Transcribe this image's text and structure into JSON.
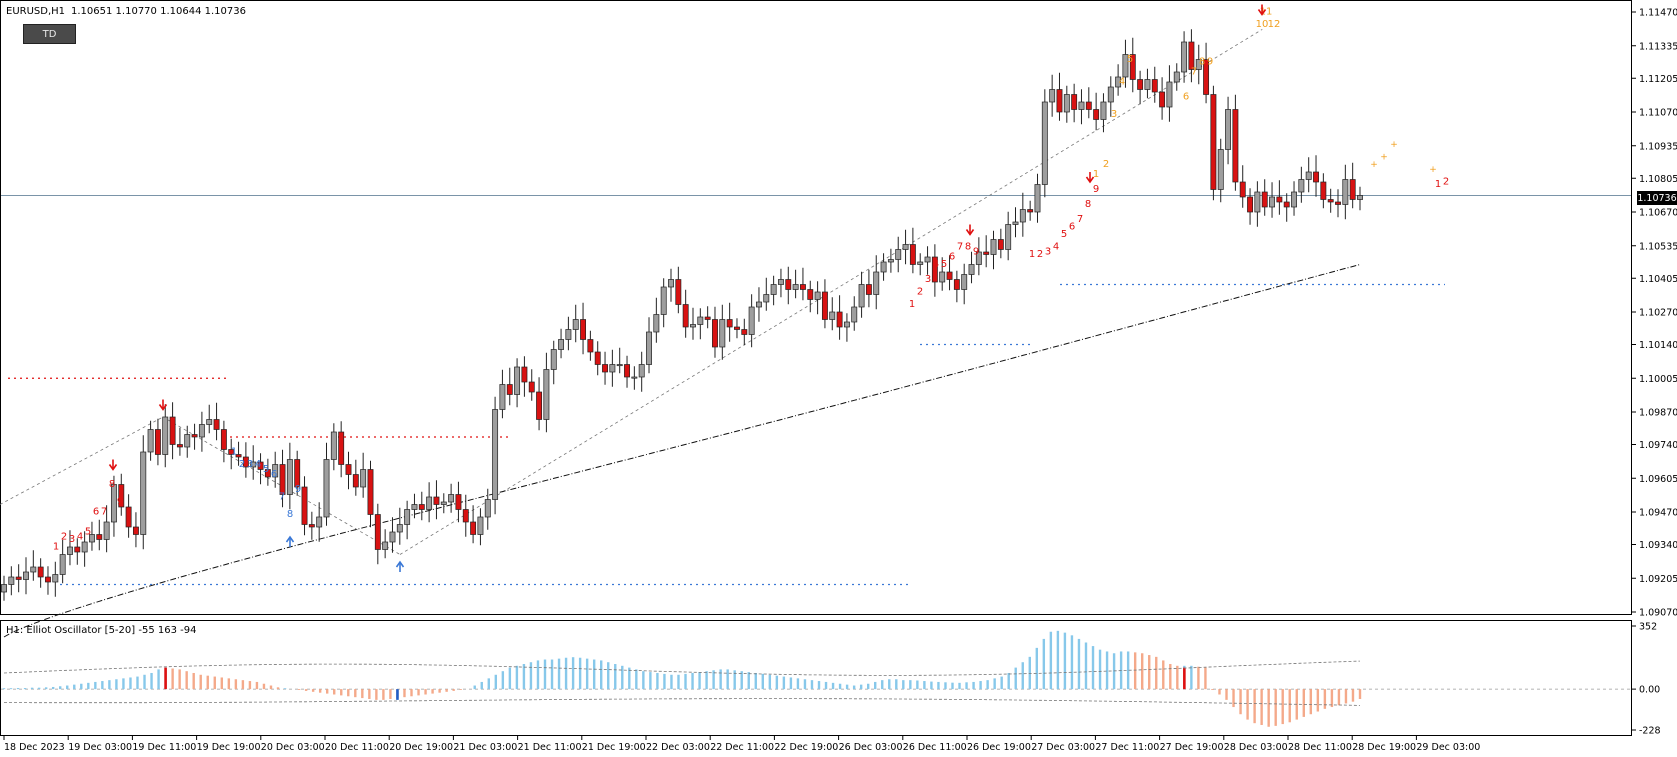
{
  "header": {
    "symbol": "EURUSD,H1",
    "ohlc": "1.10651 1.10770 1.10644 1.10736",
    "button_label": "TD"
  },
  "osc_header": {
    "text": "H1: Elliot Oscillator [5-20]  -55 163 -94"
  },
  "current_price": "1.10736",
  "colors": {
    "bull": "#9e9e9e",
    "bear": "#d81212",
    "osc_pos": "#87c8ea",
    "osc_neg": "#f4a98a",
    "td_red": "#e01010",
    "td_blue": "#3a78d6",
    "td_orange": "#f0a020"
  },
  "chart_data": [
    {
      "type": "candlestick",
      "title": "EURUSD,H1",
      "ylim": [
        1.0907,
        1.1147
      ],
      "y_ticks": [
        "1.11470",
        "1.11335",
        "1.11205",
        "1.11070",
        "1.10935",
        "1.10805",
        "1.10670",
        "1.10535",
        "1.10405",
        "1.10270",
        "1.10140",
        "1.10005",
        "1.09870",
        "1.09740",
        "1.09605",
        "1.09470",
        "1.09340",
        "1.09205",
        "1.09070"
      ],
      "x_ticks": [
        "18 Dec 2023",
        "19 Dec 03:00",
        "19 Dec 11:00",
        "19 Dec 19:00",
        "20 Dec 03:00",
        "20 Dec 11:00",
        "20 Dec 19:00",
        "21 Dec 03:00",
        "21 Dec 11:00",
        "21 Dec 19:00",
        "22 Dec 03:00",
        "22 Dec 11:00",
        "22 Dec 19:00",
        "26 Dec 03:00",
        "26 Dec 11:00",
        "26 Dec 19:00",
        "27 Dec 03:00",
        "27 Dec 11:00",
        "27 Dec 19:00",
        "28 Dec 03:00",
        "28 Dec 11:00",
        "28 Dec 19:00",
        "29 Dec 03:00"
      ],
      "close": [
        1.0918,
        1.0921,
        1.092,
        1.0923,
        1.0925,
        1.0921,
        1.0919,
        1.0922,
        1.093,
        1.0933,
        1.0931,
        1.0935,
        1.0938,
        1.0936,
        1.0943,
        1.0958,
        1.0949,
        1.0941,
        1.0938,
        1.0971,
        1.098,
        1.097,
        1.0985,
        1.0974,
        1.0973,
        1.0978,
        1.0977,
        1.0982,
        1.0984,
        1.098,
        1.0972,
        1.097,
        1.0969,
        1.0965,
        1.0967,
        1.0964,
        1.0961,
        1.0966,
        1.0954,
        1.0968,
        1.0957,
        1.0942,
        1.0941,
        1.0945,
        1.0968,
        1.0979,
        1.0966,
        1.0962,
        1.0957,
        1.0964,
        1.0946,
        1.0932,
        1.0935,
        1.0939,
        1.0942,
        1.0948,
        1.095,
        1.0948,
        1.0953,
        1.095,
        1.0951,
        1.0954,
        1.0948,
        1.0943,
        1.0938,
        1.0945,
        1.0952,
        1.0988,
        1.0998,
        1.0994,
        1.1005,
        1.0999,
        1.0995,
        1.0984,
        1.1004,
        1.1012,
        1.1016,
        1.102,
        1.1024,
        1.1016,
        1.1011,
        1.1006,
        1.1003,
        1.1006,
        1.1006,
        1.1001,
        1.1001,
        1.1006,
        1.1019,
        1.1026,
        1.1037,
        1.104,
        1.103,
        1.1021,
        1.1022,
        1.1025,
        1.1024,
        1.1013,
        1.1024,
        1.1021,
        1.102,
        1.1018,
        1.1029,
        1.1031,
        1.1034,
        1.1038,
        1.104,
        1.1036,
        1.1038,
        1.1036,
        1.1032,
        1.1035,
        1.1024,
        1.1027,
        1.1021,
        1.1023,
        1.1029,
        1.1038,
        1.1034,
        1.1043,
        1.1047,
        1.1048,
        1.1052,
        1.1054,
        1.1046,
        1.1047,
        1.1049,
        1.1039,
        1.1043,
        1.104,
        1.1036,
        1.1042,
        1.1046,
        1.1051,
        1.105,
        1.1056,
        1.1052,
        1.1062,
        1.1063,
        1.1068,
        1.1067,
        1.1078,
        1.1111,
        1.1116,
        1.1107,
        1.1114,
        1.1108,
        1.1111,
        1.1108,
        1.1104,
        1.1111,
        1.1117,
        1.1121,
        1.113,
        1.112,
        1.1116,
        1.112,
        1.1115,
        1.1109,
        1.1119,
        1.1123,
        1.1135,
        1.1124,
        1.1128,
        1.1114,
        1.1076,
        1.1092,
        1.1108,
        1.1079,
        1.1073,
        1.1067,
        1.1075,
        1.1069,
        1.1073,
        1.1071,
        1.1069,
        1.1075,
        1.108,
        1.1083,
        1.1079,
        1.1072,
        1.1071,
        1.107,
        1.108,
        1.1072,
        1.10736
      ],
      "high_low_note": "wicks approximated around each body",
      "sma_line": "black dash-dot moving average rising from 1.0899 to 1.1046",
      "td_labels_red": [
        "1",
        "2",
        "3",
        "4",
        "5",
        "6",
        "7",
        "8",
        "9",
        "1",
        "2",
        "3",
        "4",
        "5",
        "6",
        "7",
        "8",
        "9",
        "1",
        "2",
        "3",
        "4",
        "5",
        "6",
        "7",
        "8",
        "9",
        "1",
        "2"
      ],
      "td_labels_blue": [
        "1",
        "2",
        "3",
        "4",
        "5",
        "6",
        "7",
        "8",
        "9"
      ],
      "td_labels_orange": [
        "1",
        "2",
        "3",
        "4",
        "5",
        "6",
        "7",
        "8",
        "9",
        "10",
        "11",
        "12"
      ]
    },
    {
      "type": "bar",
      "title": "H1: Elliot Oscillator [5-20]",
      "ylim": [
        -228,
        352
      ],
      "y_ticks": [
        "352",
        "0.00",
        "-228"
      ],
      "values": [
        5,
        5,
        6,
        6,
        8,
        8,
        10,
        12,
        16,
        20,
        25,
        30,
        35,
        40,
        45,
        50,
        55,
        60,
        65,
        70,
        80,
        90,
        110,
        120,
        115,
        110,
        100,
        90,
        80,
        75,
        70,
        65,
        60,
        55,
        50,
        45,
        40,
        30,
        20,
        10,
        5,
        0,
        -5,
        -10,
        -15,
        -20,
        -25,
        -30,
        -35,
        -40,
        -45,
        -50,
        -55,
        -60,
        -60,
        -55,
        -50,
        -45,
        -40,
        -35,
        -30,
        -25,
        -20,
        -15,
        -10,
        -5,
        0,
        20,
        40,
        60,
        80,
        100,
        120,
        130,
        140,
        150,
        160,
        165,
        165,
        170,
        175,
        178,
        175,
        170,
        165,
        160,
        150,
        140,
        130,
        120,
        110,
        100,
        95,
        90,
        85,
        80,
        80,
        85,
        90,
        95,
        100,
        105,
        110,
        110,
        105,
        100,
        95,
        90,
        85,
        80,
        75,
        70,
        65,
        60,
        55,
        50,
        45,
        40,
        35,
        30,
        25,
        20,
        25,
        30,
        40,
        50,
        55,
        55,
        50,
        50,
        48,
        45,
        42,
        40,
        38,
        36,
        35,
        38,
        40,
        45,
        50,
        60,
        70,
        90,
        120,
        150,
        180,
        230,
        280,
        320,
        325,
        315,
        300,
        280,
        260,
        240,
        220,
        210,
        200,
        210,
        210,
        205,
        200,
        190,
        180,
        160,
        140,
        130,
        130,
        130,
        125,
        120,
        -5,
        -30,
        -60,
        -100,
        -140,
        -170,
        -190,
        -200,
        -210,
        -205,
        -195,
        -185,
        -170,
        -155,
        -140,
        -125,
        -110,
        -100,
        -90,
        -80,
        -70,
        -55
      ]
    }
  ]
}
